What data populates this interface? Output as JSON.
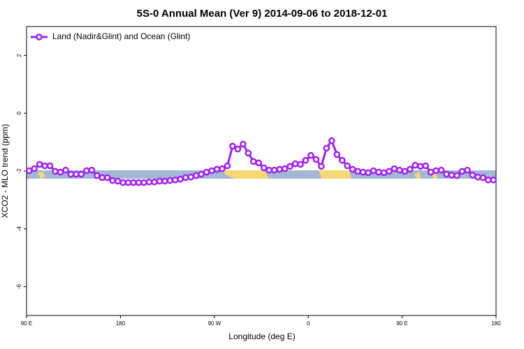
{
  "chart_data": {
    "type": "line",
    "title": "5S-0 Annual Mean (Ver 9)   2014-09-06 to 2018-12-01",
    "x_label": "Longitude (deg E)",
    "y_label": "XCO2 - MLO trend (ppm)",
    "x": [
      -267.5,
      -262.5,
      -257.5,
      -252.5,
      -247.5,
      -242.5,
      -237.5,
      -232.5,
      -227.5,
      -222.5,
      -217.5,
      -212.5,
      -207.5,
      -202.5,
      -197.5,
      -192.5,
      -187.5,
      -182.5,
      -177.5,
      -172.5,
      -167.5,
      -162.5,
      -157.5,
      -152.5,
      -147.5,
      -142.5,
      -137.5,
      -132.5,
      -127.5,
      -122.5,
      -117.5,
      -112.5,
      -107.5,
      -102.5,
      -97.5,
      -92.5,
      -87.5,
      -82.5,
      -77.5,
      -72.5,
      -67.5,
      -62.5,
      -57.5,
      -52.5,
      -47.5,
      -42.5,
      -37.5,
      -32.5,
      -27.5,
      -22.5,
      -17.5,
      -12.5,
      -7.5,
      -2.5,
      2.5,
      7.5,
      12.5,
      17.5,
      22.5,
      27.5,
      32.5,
      37.5,
      42.5,
      47.5,
      52.5,
      57.5,
      62.5,
      67.5,
      72.5,
      77.5,
      82.5,
      87.5,
      92.5,
      97.5,
      102.5,
      107.5,
      112.5,
      117.5,
      122.5,
      127.5,
      132.5,
      137.5,
      142.5,
      147.5,
      152.5,
      157.5,
      162.5,
      167.5,
      172.5,
      177.5
    ],
    "series": [
      {
        "name": "Land (Nadir&Glint) and Ocean (Glint)",
        "color": "#a020f0",
        "values": [
          -1.99,
          -1.92,
          -1.77,
          -1.82,
          -1.82,
          -2.01,
          -2.04,
          -1.97,
          -2.11,
          -2.11,
          -2.11,
          -1.99,
          -1.97,
          -2.16,
          -2.23,
          -2.23,
          -2.33,
          -2.35,
          -2.4,
          -2.4,
          -2.4,
          -2.4,
          -2.4,
          -2.38,
          -2.38,
          -2.35,
          -2.35,
          -2.33,
          -2.31,
          -2.28,
          -2.23,
          -2.21,
          -2.16,
          -2.11,
          -2.04,
          -1.99,
          -1.94,
          -1.92,
          -1.82,
          -1.14,
          -1.24,
          -1.07,
          -1.38,
          -1.67,
          -1.72,
          -1.89,
          -1.97,
          -1.97,
          -1.94,
          -1.92,
          -1.84,
          -1.75,
          -1.77,
          -1.63,
          -1.46,
          -1.6,
          -1.84,
          -1.21,
          -0.95,
          -1.43,
          -1.63,
          -1.82,
          -1.94,
          -2.01,
          -2.04,
          -2.06,
          -1.99,
          -2.04,
          -2.06,
          -2.01,
          -1.92,
          -1.97,
          -2.01,
          -1.94,
          -1.8,
          -1.84,
          -1.82,
          -2.04,
          -1.99,
          -1.97,
          -2.11,
          -2.14,
          -2.16,
          -2.01,
          -1.97,
          -2.14,
          -2.21,
          -2.23,
          -2.31,
          -2.31
        ]
      }
    ],
    "xlim": [
      -270,
      180
    ],
    "xticks": [
      {
        "value": -270,
        "label": "90 E"
      },
      {
        "value": -180,
        "label": "180"
      },
      {
        "value": -90,
        "label": "90 W"
      },
      0,
      {
        "value": 90,
        "label": "90 E"
      },
      180
    ],
    "ylim": [
      -7,
      3
    ],
    "yticks": [
      2,
      0,
      -2,
      -4,
      -6
    ],
    "legend": "upper-left"
  }
}
